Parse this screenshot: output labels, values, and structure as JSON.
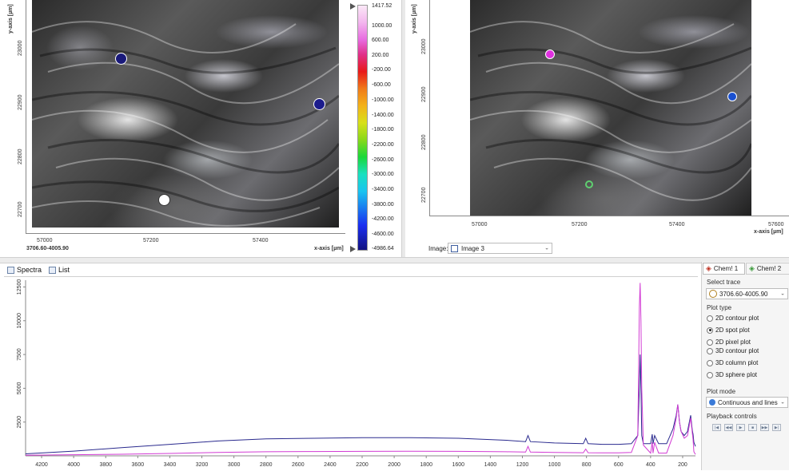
{
  "left_map": {
    "y_axis_label": "y-axis [µm]",
    "x_axis_label": "x-axis [µm]",
    "x_ticks": [
      "57000",
      "57200",
      "57400"
    ],
    "y_ticks": [
      "23000",
      "22900",
      "22800",
      "22700"
    ],
    "trace_label": "3706.60-4005.90",
    "colorbar_labels": [
      "1417.52",
      "1000.00",
      "600.00",
      "200.00",
      "-200.00",
      "-600.00",
      "-1000.00",
      "-1400.00",
      "-1800.00",
      "-2200.00",
      "-2600.00",
      "-3000.00",
      "-3400.00",
      "-3800.00",
      "-4200.00",
      "-4600.00",
      "-4986.64"
    ]
  },
  "right_map": {
    "y_axis_label": "y-axis [µm]",
    "x_axis_label": "x-axis [µm]",
    "x_ticks": [
      "57000",
      "57200",
      "57400",
      "57600"
    ],
    "y_ticks": [
      "23000",
      "22900",
      "22800",
      "22700"
    ],
    "image_label": "Image:",
    "image_value": "Image 3"
  },
  "bottom_tabs": {
    "spectra": "Spectra",
    "list": "List"
  },
  "side_panel": {
    "tab1": "Chem! 1",
    "tab2": "Chem! 2",
    "select_trace_label": "Select trace",
    "select_trace_value": "3706.60-4005.90",
    "plot_type_label": "Plot type",
    "plot_types": [
      "2D contour plot",
      "2D spot plot",
      "2D pixel plot",
      "3D contour plot",
      "3D column plot",
      "3D sphere plot"
    ],
    "plot_type_selected": 1,
    "plot_mode_label": "Plot mode",
    "plot_mode_value": "Continuous and lines",
    "playback_label": "Playback controls"
  },
  "chart_data": {
    "type": "line",
    "x_ticks": [
      4200,
      4000,
      3800,
      3600,
      3400,
      3200,
      3000,
      2800,
      2600,
      2400,
      2200,
      2000,
      1800,
      1600,
      1400,
      1200,
      1000,
      800,
      600,
      400,
      200
    ],
    "y_ticks": [
      12500,
      10000,
      7500,
      5000,
      2500
    ],
    "xlim": [
      4300,
      120
    ],
    "ylim": [
      0,
      13000
    ],
    "series": [
      {
        "name": "",
        "color": "#2a2a8e",
        "x": [
          4300,
          4000,
          3700,
          3400,
          3100,
          2800,
          2500,
          2200,
          1900,
          1600,
          1300,
          1180,
          1165,
          1150,
          1000,
          820,
          805,
          790,
          700,
          600,
          520,
          480,
          470,
          465,
          460,
          455,
          445,
          400,
          390,
          385,
          375,
          350,
          320,
          300,
          260,
          240,
          230,
          225,
          220,
          210,
          190,
          170,
          150,
          140,
          135,
          130,
          120
        ],
        "y": [
          150,
          350,
          600,
          850,
          1100,
          1250,
          1300,
          1350,
          1350,
          1300,
          1150,
          1050,
          1500,
          1050,
          950,
          900,
          1300,
          900,
          850,
          850,
          900,
          1500,
          5000,
          7500,
          5000,
          1500,
          900,
          900,
          1600,
          900,
          1500,
          900,
          900,
          900,
          2000,
          3000,
          3800,
          3200,
          2500,
          1800,
          1500,
          1800,
          3000,
          1900,
          1600,
          1000,
          700
        ]
      },
      {
        "name": "",
        "color": "#d23bd4",
        "x": [
          4300,
          4000,
          3700,
          3400,
          3100,
          2800,
          2500,
          2200,
          1900,
          1600,
          1300,
          1180,
          1165,
          1150,
          1000,
          820,
          805,
          790,
          700,
          600,
          520,
          480,
          475,
          470,
          465,
          460,
          455,
          445,
          400,
          390,
          385,
          375,
          350,
          320,
          300,
          260,
          240,
          230,
          225,
          220,
          210,
          190,
          170,
          150,
          140,
          135,
          130,
          120
        ],
        "y": [
          50,
          80,
          120,
          180,
          250,
          300,
          320,
          330,
          340,
          330,
          300,
          280,
          700,
          280,
          250,
          230,
          500,
          230,
          220,
          220,
          250,
          1500,
          6000,
          11000,
          12800,
          10000,
          5000,
          800,
          200,
          1000,
          200,
          1000,
          200,
          200,
          200,
          1500,
          2800,
          3800,
          3200,
          2500,
          1800,
          1300,
          1500,
          2800,
          1700,
          1200,
          300,
          100
        ]
      }
    ]
  },
  "colors": {
    "accent_blue": "#1a3a8f",
    "accent_magenta": "#d23bd4"
  }
}
